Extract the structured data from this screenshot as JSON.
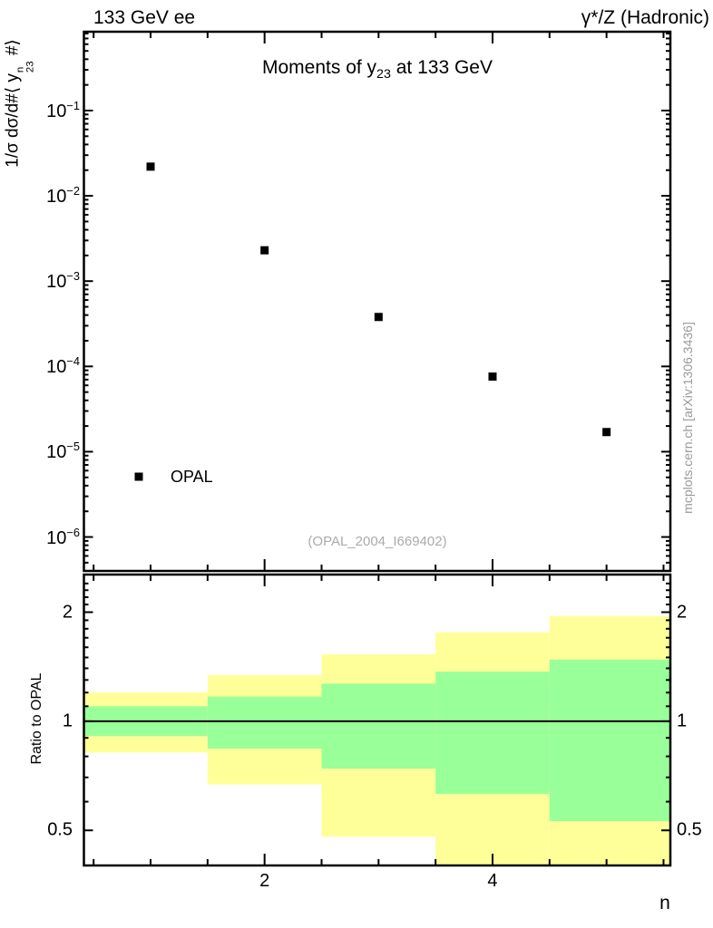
{
  "header": {
    "left": "133 GeV ee",
    "right": "γ*/Z (Hadronic)"
  },
  "side_note": "mcplots.cern.ch [arXiv:1306.3436]",
  "main_panel": {
    "title": {
      "prefix": "Moments of y",
      "sub": "23",
      "suffix": " at 133 GeV"
    },
    "ylabel": {
      "prefix": "1/σ  dσ/d#⟨ y",
      "sup": "n",
      "sub": "23",
      "suffix": " #⟩"
    },
    "watermark": "(OPAL_2004_I669402)",
    "legend": {
      "label": "OPAL",
      "marker": "filled-square",
      "marker_color": "#000000"
    }
  },
  "ratio_panel": {
    "ylabel": "Ratio to OPAL",
    "xlabel": "n"
  },
  "colors": {
    "yellow_band": "#ffff99",
    "green_band": "#99ff99",
    "marker": "#000000",
    "axis": "#000000",
    "gray_text": "#999999"
  },
  "chart_data": [
    {
      "type": "scatter",
      "title": "Moments of y_23 at 133 GeV",
      "series_name": "OPAL",
      "marker": "filled-square",
      "x": [
        1,
        2,
        3,
        4,
        5
      ],
      "y": [
        0.022,
        0.0023,
        0.00038,
        7.6e-05,
        1.7e-05
      ],
      "xlim": [
        0.415,
        5.56
      ],
      "ylim": [
        4e-07,
        0.84
      ],
      "yscale": "log",
      "ytick_exponents": [
        -1,
        -2,
        -3,
        -4,
        -5,
        -6
      ],
      "xticks_major": [
        2,
        4
      ],
      "xticks_minor_step": 0.5,
      "grid": false,
      "legend_position": "bottom-left"
    },
    {
      "type": "ratio-bands",
      "ylabel": "Ratio to OPAL",
      "xlabel": "n",
      "xlim": [
        0.415,
        5.56
      ],
      "ylim": [
        0.4,
        2.54
      ],
      "yscale": "log",
      "yticks_major": [
        0.5,
        1,
        2
      ],
      "ytick_labels": [
        "0.5",
        "1",
        "2"
      ],
      "yticks_minor_step": 0.1,
      "yticks_minor_range": [
        0.4,
        2.4
      ],
      "xticks_major": [
        2,
        4
      ],
      "xtick_labels": [
        "2",
        "4"
      ],
      "xticks_minor_step": 0.5,
      "reference_line": 1,
      "bin_edges": [
        0.415,
        1.5,
        2.5,
        3.5,
        4.5,
        5.56
      ],
      "bins": [
        {
          "n": 1,
          "yellow": [
            0.82,
            1.2
          ],
          "green": [
            0.91,
            1.1
          ]
        },
        {
          "n": 2,
          "yellow": [
            0.67,
            1.34
          ],
          "green": [
            0.84,
            1.17
          ]
        },
        {
          "n": 3,
          "yellow": [
            0.48,
            1.53
          ],
          "green": [
            0.74,
            1.27
          ]
        },
        {
          "n": 4,
          "yellow": [
            0.38,
            1.76
          ],
          "green": [
            0.63,
            1.37
          ]
        },
        {
          "n": 5,
          "yellow": [
            0.38,
            1.95
          ],
          "green": [
            0.53,
            1.48
          ]
        }
      ]
    }
  ]
}
